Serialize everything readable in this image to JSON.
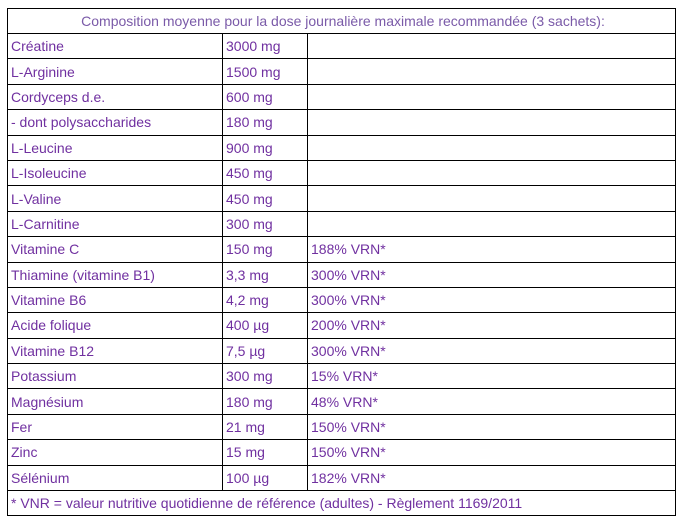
{
  "table": {
    "title": "Composition moyenne pour la dose journalière maximale recommandée (3 sachets):",
    "rows": [
      [
        "Créatine",
        "3000 mg"
      ],
      [
        "L-Arginine",
        "1500 mg"
      ],
      [
        "Cordyceps d.e.",
        "600 mg"
      ],
      [
        "- dont polysaccharides",
        "180 mg"
      ],
      [
        "L-Leucine",
        "900 mg"
      ],
      [
        "L-Isoleucine",
        "450 mg"
      ],
      [
        "L-Valine",
        "450 mg"
      ],
      [
        "L-Carnitine",
        "300 mg"
      ],
      [
        "Vitamine C",
        "150 mg",
        "188% VRN*"
      ],
      [
        "Thiamine (vitamine B1)",
        "3,3 mg",
        "300% VRN*"
      ],
      [
        "Vitamine B6",
        "4,2 mg",
        "300% VRN*"
      ],
      [
        "Acide folique",
        "400 µg",
        "200% VRN*"
      ],
      [
        "Vitamine B12",
        "7,5 µg",
        "300% VRN*"
      ],
      [
        "Potassium",
        "300 mg",
        "15% VRN*"
      ],
      [
        "Magnésium",
        "180 mg",
        "48% VRN*"
      ],
      [
        "Fer",
        "21 mg",
        "150% VRN*"
      ],
      [
        "Zinc",
        "15 mg",
        "150% VRN*"
      ],
      [
        "Sélénium",
        "100 µg",
        "182% VRN*"
      ]
    ],
    "footnote": "* VNR = valeur nutritive quotidienne de référence (adultes) - Règlement 1169/2011"
  }
}
